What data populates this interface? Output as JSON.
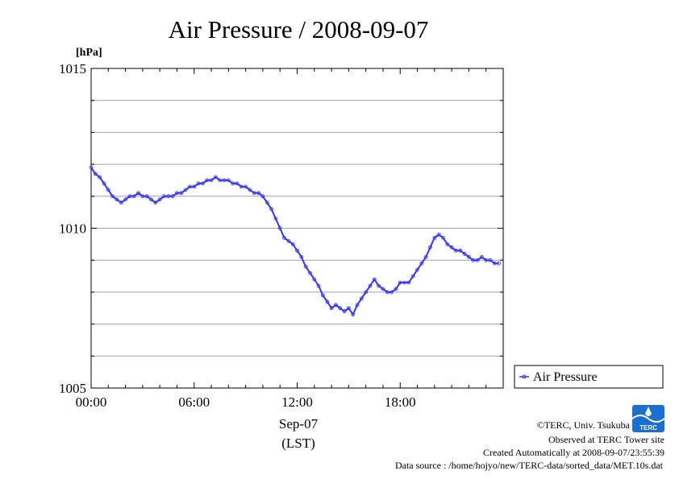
{
  "chart_data": {
    "type": "line",
    "title": "Air Pressure / 2008-09-07",
    "ylabel": "[hPa]",
    "xlabel_date": "Sep-07",
    "xlabel_tz": "(LST)",
    "ylim": [
      1005,
      1015
    ],
    "yticks": [
      "1015",
      "1010",
      "1005"
    ],
    "xlim": [
      "00:00",
      "24:00"
    ],
    "xticks": [
      "00:00",
      "06:00",
      "12:00",
      "18:00"
    ],
    "grid": true,
    "legend_position": "right",
    "series": [
      {
        "name": "Air Pressure",
        "color": "#3333ff",
        "x": [
          "00:00",
          "00:15",
          "00:30",
          "00:45",
          "01:00",
          "01:15",
          "01:30",
          "01:45",
          "02:00",
          "02:15",
          "02:30",
          "02:45",
          "03:00",
          "03:15",
          "03:30",
          "03:45",
          "04:00",
          "04:15",
          "04:30",
          "04:45",
          "05:00",
          "05:15",
          "05:30",
          "05:45",
          "06:00",
          "06:15",
          "06:30",
          "06:45",
          "07:00",
          "07:15",
          "07:30",
          "07:45",
          "08:00",
          "08:15",
          "08:30",
          "08:45",
          "09:00",
          "09:15",
          "09:30",
          "09:45",
          "10:00",
          "10:15",
          "10:30",
          "10:45",
          "11:00",
          "11:15",
          "11:30",
          "11:45",
          "12:00",
          "12:15",
          "12:30",
          "12:45",
          "13:00",
          "13:15",
          "13:30",
          "13:45",
          "14:00",
          "14:15",
          "14:30",
          "14:45",
          "15:00",
          "15:15",
          "15:30",
          "15:45",
          "16:00",
          "16:15",
          "16:30",
          "16:45",
          "17:00",
          "17:15",
          "17:30",
          "17:45",
          "18:00",
          "18:15",
          "18:30",
          "18:45",
          "19:00",
          "19:15",
          "19:30",
          "19:45",
          "20:00",
          "20:15",
          "20:30",
          "20:45",
          "21:00",
          "21:15",
          "21:30",
          "21:45",
          "22:00",
          "22:15",
          "22:30",
          "22:45",
          "23:00",
          "23:15",
          "23:30",
          "23:45"
        ],
        "values": [
          1011.9,
          1011.7,
          1011.6,
          1011.4,
          1011.2,
          1011.0,
          1010.9,
          1010.8,
          1010.9,
          1011.0,
          1011.0,
          1011.1,
          1011.0,
          1011.0,
          1010.9,
          1010.8,
          1010.9,
          1011.0,
          1011.0,
          1011.0,
          1011.1,
          1011.1,
          1011.2,
          1011.3,
          1011.3,
          1011.4,
          1011.4,
          1011.5,
          1011.5,
          1011.6,
          1011.5,
          1011.5,
          1011.5,
          1011.4,
          1011.4,
          1011.3,
          1011.3,
          1011.2,
          1011.1,
          1011.1,
          1011.0,
          1010.8,
          1010.6,
          1010.3,
          1010.0,
          1009.7,
          1009.6,
          1009.5,
          1009.3,
          1009.1,
          1008.8,
          1008.6,
          1008.4,
          1008.2,
          1007.9,
          1007.7,
          1007.5,
          1007.6,
          1007.5,
          1007.4,
          1007.5,
          1007.3,
          1007.6,
          1007.8,
          1008.0,
          1008.2,
          1008.4,
          1008.2,
          1008.1,
          1008.0,
          1008.0,
          1008.1,
          1008.3,
          1008.3,
          1008.3,
          1008.5,
          1008.7,
          1008.9,
          1009.1,
          1009.4,
          1009.7,
          1009.8,
          1009.7,
          1009.5,
          1009.4,
          1009.3,
          1009.3,
          1009.2,
          1009.1,
          1009.0,
          1009.0,
          1009.1,
          1009.0,
          1009.0,
          1008.9,
          1008.9
        ]
      }
    ]
  },
  "footer": {
    "copyright": "©TERC, Univ. Tsukuba",
    "observed": "Observed at TERC Tower site",
    "created": "Created Automatically at 2008-09-07/23:55:39",
    "source": "Data source : /home/hojyo/new/TERC-data/sorted_data/MET.10s.dat"
  },
  "logo": {
    "text": "TERC",
    "color": "#1a6fd0"
  }
}
